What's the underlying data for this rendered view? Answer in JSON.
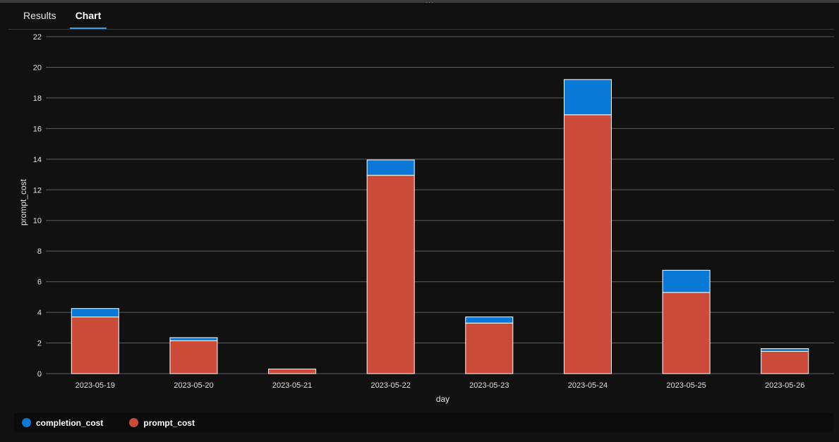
{
  "tabs": [
    {
      "label": "Results",
      "active": false
    },
    {
      "label": "Chart",
      "active": true
    }
  ],
  "chart_data": {
    "type": "bar",
    "stacked": true,
    "xlabel": "day",
    "ylabel": "prompt_cost",
    "ylim": [
      0,
      22
    ],
    "yticks": [
      0,
      2,
      4,
      6,
      8,
      10,
      12,
      14,
      16,
      18,
      20,
      22
    ],
    "grid": true,
    "legend_position": "bottom-left",
    "categories": [
      "2023-05-19",
      "2023-05-20",
      "2023-05-21",
      "2023-05-22",
      "2023-05-23",
      "2023-05-24",
      "2023-05-25",
      "2023-05-26"
    ],
    "series": [
      {
        "name": "prompt_cost",
        "color": "#cc4a38",
        "values": [
          3.7,
          2.15,
          0.3,
          12.95,
          3.3,
          16.9,
          5.3,
          1.45
        ]
      },
      {
        "name": "completion_cost",
        "color": "#0a78d7",
        "values": [
          0.55,
          0.2,
          0.0,
          1.0,
          0.4,
          2.3,
          1.45,
          0.18
        ]
      }
    ],
    "legend": [
      "completion_cost",
      "prompt_cost"
    ]
  }
}
